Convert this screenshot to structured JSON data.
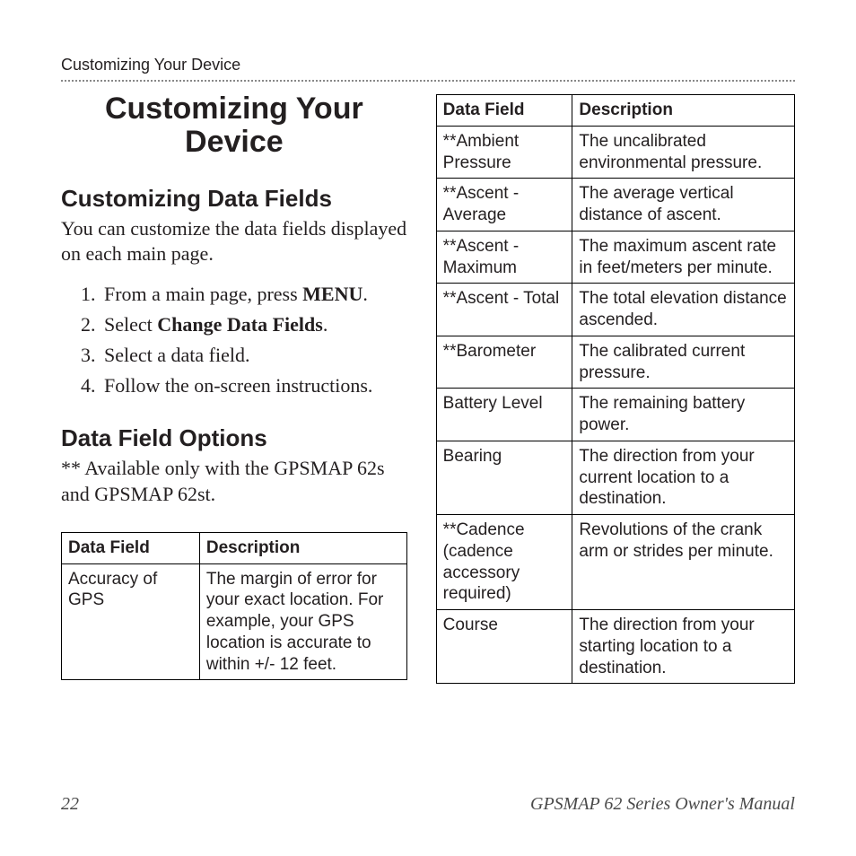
{
  "running_head": "Customizing Your Device",
  "chapter_title": "Customizing Your Device",
  "section1": {
    "title": "Customizing Data Fields",
    "intro": "You can customize the data fields displayed on each main page.",
    "steps": [
      {
        "pre": "From a main page, press ",
        "bold": "MENU",
        "post": "."
      },
      {
        "pre": "Select ",
        "bold": "Change Data Fields",
        "post": "."
      },
      {
        "pre": "Select a data field.",
        "bold": "",
        "post": ""
      },
      {
        "pre": "Follow the on-screen instructions.",
        "bold": "",
        "post": ""
      }
    ]
  },
  "section2": {
    "title": "Data Field Options",
    "note": "** Available only with the GPSMAP 62s and GPSMAP 62st."
  },
  "table_headers": {
    "field": "Data Field",
    "desc": "Description"
  },
  "left_table": {
    "rows": [
      {
        "field": "Accuracy of GPS",
        "desc": "The margin of error for your exact location. For example, your GPS location is accurate to within +/- 12 feet."
      }
    ]
  },
  "right_table": {
    "rows": [
      {
        "field": "**Ambient Pressure",
        "desc": "The uncalibrated environmental pressure."
      },
      {
        "field": "**Ascent - Average",
        "desc": "The average vertical distance of ascent."
      },
      {
        "field": "**Ascent - Maximum",
        "desc": "The maximum ascent rate in feet/meters per minute."
      },
      {
        "field": "**Ascent - Total",
        "desc": "The total elevation distance ascended."
      },
      {
        "field": "**Barometer",
        "desc": "The calibrated current pressure."
      },
      {
        "field": "Battery Level",
        "desc": "The remaining battery power."
      },
      {
        "field": "Bearing",
        "desc": "The direction from your current location to a destination."
      },
      {
        "field": "**Cadence (cadence accessory required)",
        "desc": "Revolutions of the crank arm or strides per minute."
      },
      {
        "field": "Course",
        "desc": "The direction from your starting location to a destination."
      }
    ]
  },
  "footer": {
    "page": "22",
    "manual": "GPSMAP 62 Series Owner's Manual"
  }
}
